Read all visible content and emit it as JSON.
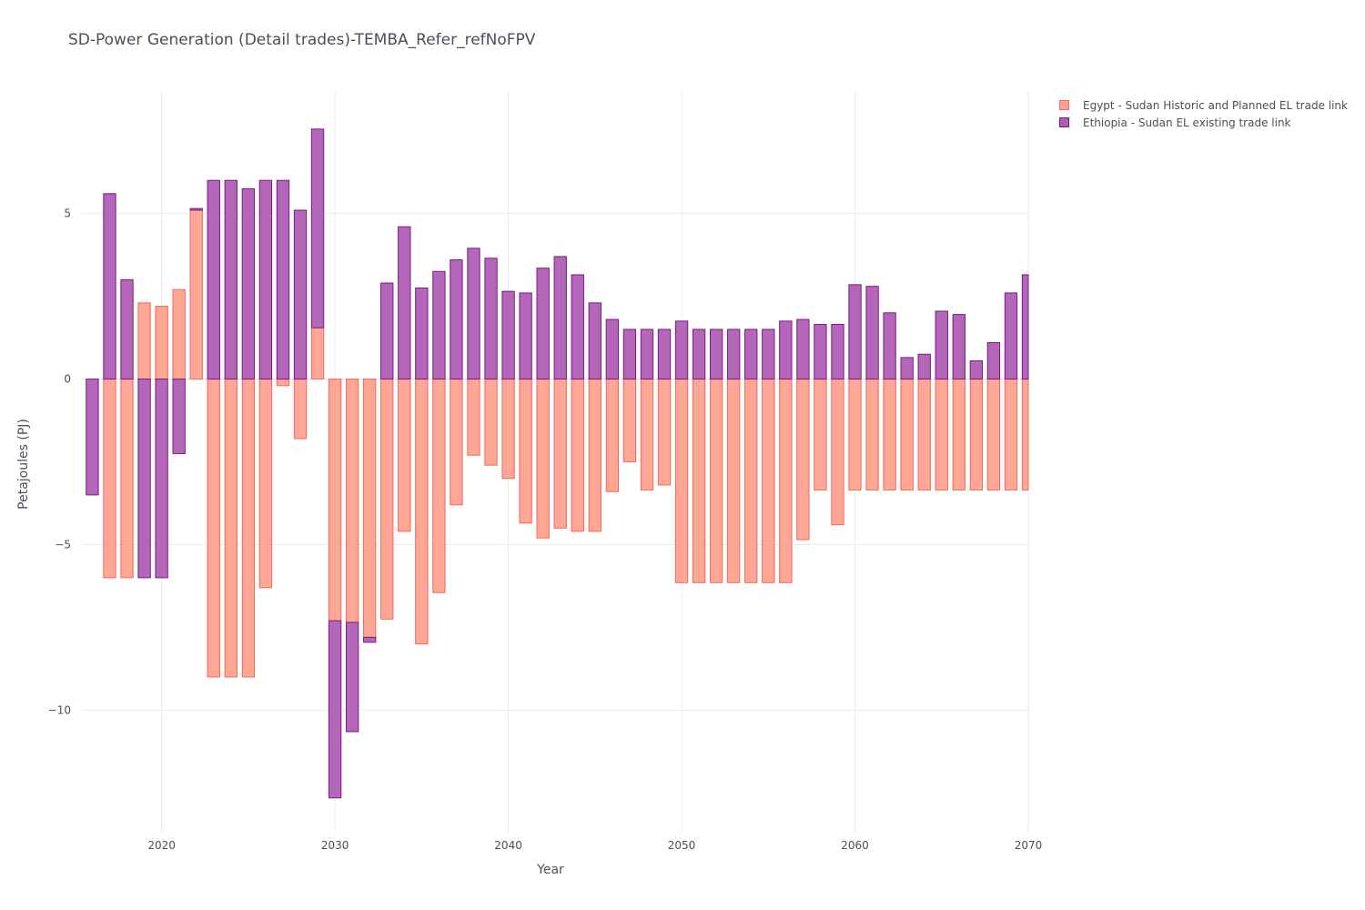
{
  "chart_data": {
    "type": "bar",
    "barmode": "relative",
    "title": "SD-Power Generation (Detail trades)-TEMBA_Refer_refNoFPV",
    "xlabel": "Year",
    "ylabel": "Petajoules (PJ)",
    "xlim": [
      2015.4,
      2070
    ],
    "ylim": [
      -13.7,
      8.7
    ],
    "x_ticks": [
      2020,
      2030,
      2040,
      2050,
      2060,
      2070
    ],
    "y_ticks": [
      -10,
      -5,
      0,
      5
    ],
    "grid": true,
    "legend_position": "top-right",
    "x": [
      2016,
      2017,
      2018,
      2019,
      2020,
      2021,
      2022,
      2023,
      2024,
      2025,
      2026,
      2027,
      2028,
      2029,
      2030,
      2031,
      2032,
      2033,
      2034,
      2035,
      2036,
      2037,
      2038,
      2039,
      2040,
      2041,
      2042,
      2043,
      2044,
      2045,
      2046,
      2047,
      2048,
      2049,
      2050,
      2051,
      2052,
      2053,
      2054,
      2055,
      2056,
      2057,
      2058,
      2059,
      2060,
      2061,
      2062,
      2063,
      2064,
      2065,
      2066,
      2067,
      2068,
      2069,
      2070
    ],
    "series": [
      {
        "name": "Egypt - Sudan Historic and Planned EL trade link",
        "fill": "#ffa190",
        "stroke": "#f26b5b",
        "values": [
          0,
          -6.0,
          -6.0,
          2.3,
          2.2,
          2.7,
          5.1,
          -9.0,
          -9.0,
          -9.0,
          -6.3,
          -0.2,
          -1.8,
          1.55,
          -7.3,
          -7.35,
          -7.8,
          -7.25,
          -4.6,
          -8.0,
          -6.45,
          -3.8,
          -2.3,
          -2.6,
          -3.0,
          -4.35,
          -4.8,
          -4.5,
          -4.6,
          -4.6,
          -3.4,
          -2.5,
          -3.35,
          -3.2,
          -6.15,
          -6.15,
          -6.15,
          -6.15,
          -6.15,
          -6.15,
          -6.15,
          -4.85,
          -3.35,
          -4.4,
          -3.35,
          -3.35,
          -3.35,
          -3.35,
          -3.35,
          -3.35,
          -3.35,
          -3.35,
          -3.35,
          -3.35,
          -3.35
        ]
      },
      {
        "name": "Ethiopia - Sudan EL existing trade link",
        "fill": "#b05eb5",
        "stroke": "#7a1a86",
        "values": [
          -3.5,
          5.6,
          3.0,
          -6.0,
          -6.0,
          -2.25,
          0.05,
          6.0,
          6.0,
          5.75,
          6.0,
          6.0,
          5.1,
          6.0,
          -5.35,
          -3.3,
          -0.15,
          2.9,
          4.6,
          2.75,
          3.25,
          3.6,
          3.95,
          3.65,
          2.65,
          2.6,
          3.35,
          3.7,
          3.15,
          2.3,
          1.8,
          1.5,
          1.5,
          1.5,
          1.75,
          1.5,
          1.5,
          1.5,
          1.5,
          1.5,
          1.75,
          1.8,
          1.65,
          1.65,
          2.85,
          2.8,
          2.0,
          0.65,
          0.75,
          2.05,
          1.95,
          0.55,
          1.1,
          2.6,
          3.15
        ]
      }
    ]
  }
}
